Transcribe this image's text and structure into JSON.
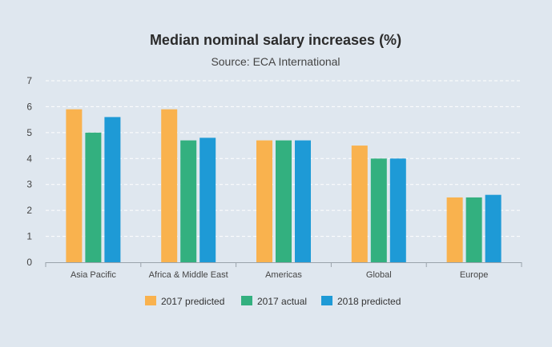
{
  "chart_data": {
    "type": "bar",
    "title": "Median nominal salary increases (%)",
    "subtitle": "Source: ECA International",
    "xlabel": "",
    "ylabel": "",
    "ylim": [
      0,
      7
    ],
    "yticks": [
      0,
      1,
      2,
      3,
      4,
      5,
      6,
      7
    ],
    "grid": true,
    "legend_position": "bottom",
    "categories": [
      "Asia Pacific",
      "Africa & Middle East",
      "Americas",
      "Global",
      "Europe"
    ],
    "series": [
      {
        "name": "2017 predicted",
        "color": "#f9b24e",
        "values": [
          5.9,
          5.9,
          4.7,
          4.5,
          2.5
        ]
      },
      {
        "name": "2017 actual",
        "color": "#33b07f",
        "values": [
          5.0,
          4.7,
          4.7,
          4.0,
          2.5
        ]
      },
      {
        "name": "2018 predicted",
        "color": "#1e9ad6",
        "values": [
          5.6,
          4.8,
          4.7,
          4.0,
          2.6
        ]
      }
    ]
  }
}
